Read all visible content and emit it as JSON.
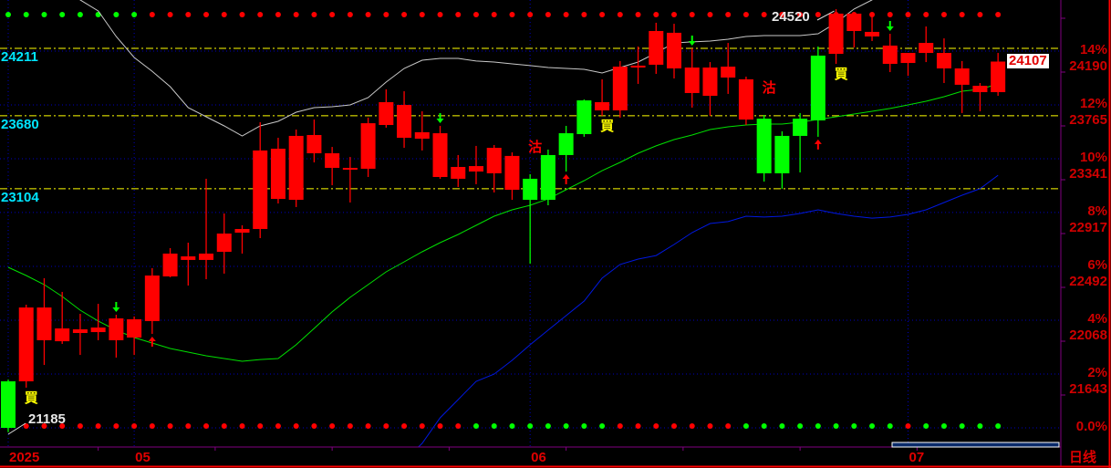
{
  "chart_data": {
    "type": "candlestick",
    "period_label": "日线",
    "x_tick_labels": [
      {
        "index": 0,
        "label": "2025"
      },
      {
        "index": 7,
        "label": "05"
      },
      {
        "index": 29,
        "label": "06"
      },
      {
        "index": 50,
        "label": "07"
      }
    ],
    "y_axis_right": [
      {
        "pct": "14%",
        "price": "24190",
        "value": 24190
      },
      {
        "pct": "12%",
        "price": "23765",
        "value": 23765
      },
      {
        "pct": "10%",
        "price": "23341",
        "value": 23341
      },
      {
        "pct": "8%",
        "price": "22917",
        "value": 22917
      },
      {
        "pct": "6%",
        "price": "22492",
        "value": 22492
      },
      {
        "pct": "4%",
        "price": "22068",
        "value": 22068
      },
      {
        "pct": "2%",
        "price": "21643",
        "value": 21643
      },
      {
        "pct": "0.0%",
        "price": "",
        "value": 21219
      }
    ],
    "base_price": 21219,
    "last_price": "24107",
    "last_price_value": 24107,
    "levels": [
      {
        "label": "24211",
        "value": 24211
      },
      {
        "label": "23680",
        "value": 23680
      },
      {
        "label": "23104",
        "value": 23104
      }
    ],
    "high_label": {
      "text": "24520",
      "index": 46
    },
    "low_label": {
      "text": "21185",
      "index": 0
    },
    "candles": [
      [
        21586,
        21600,
        21185,
        21219
      ],
      [
        21586,
        22190,
        21536,
        22168
      ],
      [
        21910,
        22399,
        21715,
        22168
      ],
      [
        21902,
        22291,
        21881,
        22003
      ],
      [
        21967,
        22118,
        21794,
        21996
      ],
      [
        21974,
        22197,
        21910,
        22010
      ],
      [
        21910,
        22111,
        21773,
        22082
      ],
      [
        21931,
        22097,
        21794,
        22075
      ],
      [
        22061,
        22478,
        21960,
        22420
      ],
      [
        22413,
        22636,
        22406,
        22593
      ],
      [
        22543,
        22679,
        22341,
        22571
      ],
      [
        22543,
        23183,
        22391,
        22593
      ],
      [
        22607,
        22909,
        22435,
        22751
      ],
      [
        22758,
        22816,
        22593,
        22787
      ],
      [
        22787,
        23629,
        22715,
        23406
      ],
      [
        23024,
        23506,
        22988,
        23420
      ],
      [
        23017,
        23571,
        22960,
        23521
      ],
      [
        23384,
        23650,
        23312,
        23528
      ],
      [
        23269,
        23434,
        23132,
        23384
      ],
      [
        23262,
        23355,
        22996,
        23269
      ],
      [
        23262,
        23665,
        23197,
        23621
      ],
      [
        23607,
        23888,
        23586,
        23787
      ],
      [
        23506,
        23873,
        23427,
        23765
      ],
      [
        23499,
        23715,
        23406,
        23550
      ],
      [
        23197,
        23600,
        23183,
        23542
      ],
      [
        23183,
        23370,
        23118,
        23276
      ],
      [
        23240,
        23442,
        23140,
        23283
      ],
      [
        23226,
        23449,
        23075,
        23427
      ],
      [
        23096,
        23391,
        23017,
        23363
      ],
      [
        23183,
        23219,
        22514,
        23017
      ],
      [
        23370,
        23413,
        22974,
        23017
      ],
      [
        23542,
        23600,
        23240,
        23370
      ],
      [
        23801,
        23808,
        23514,
        23535
      ],
      [
        23722,
        23967,
        23679,
        23787
      ],
      [
        23722,
        24111,
        23665,
        24067
      ],
      [
        24060,
        24226,
        23931,
        24075
      ],
      [
        24082,
        24413,
        24010,
        24348
      ],
      [
        24053,
        24405,
        23974,
        24334
      ],
      [
        23859,
        24211,
        23744,
        24060
      ],
      [
        23837,
        24103,
        23679,
        24060
      ],
      [
        23981,
        24254,
        23852,
        24067
      ],
      [
        23650,
        23988,
        23607,
        23967
      ],
      [
        23657,
        23686,
        23161,
        23226
      ],
      [
        23521,
        23557,
        23104,
        23226
      ],
      [
        23657,
        23701,
        23233,
        23521
      ],
      [
        24154,
        24226,
        23514,
        23643
      ],
      [
        24168,
        24520,
        24089,
        24485
      ],
      [
        24348,
        24499,
        24218,
        24485
      ],
      [
        24305,
        24485,
        24269,
        24341
      ],
      [
        24089,
        24326,
        24024,
        24233
      ],
      [
        24096,
        24175,
        23995,
        24175
      ],
      [
        24175,
        24384,
        24103,
        24254
      ],
      [
        24053,
        24290,
        23938,
        24175
      ],
      [
        23924,
        24111,
        23701,
        24053
      ],
      [
        23866,
        23938,
        23715,
        23916
      ],
      [
        23866,
        24175,
        23837,
        24107
      ]
    ],
    "lines": [
      {
        "color": "#c8c8c8",
        "values": [
          25024,
          24916,
          24808,
          24700,
          24593,
          24506,
          24305,
          24139,
          24031,
          23909,
          23744,
          23672,
          23600,
          23521,
          23600,
          23636,
          23708,
          23744,
          23751,
          23765,
          23823,
          23945,
          24053,
          24118,
          24132,
          24132,
          24111,
          24103,
          24089,
          24075,
          24060,
          24053,
          24046,
          24017,
          24060,
          24103,
          24175,
          24254,
          24262,
          24269,
          24283,
          24305,
          24312,
          24312,
          24312,
          24326,
          24413,
          24521,
          24593,
          24700,
          24780,
          24850,
          24900,
          24950,
          25000,
          25040
        ]
      },
      {
        "color": "#00e000",
        "values": [
          22485,
          22420,
          22348,
          22255,
          22147,
          22061,
          21989,
          21931,
          21888,
          21845,
          21816,
          21787,
          21766,
          21744,
          21758,
          21766,
          21874,
          22003,
          22133,
          22248,
          22348,
          22449,
          22528,
          22607,
          22679,
          22744,
          22816,
          22888,
          22938,
          22974,
          23024,
          23096,
          23168,
          23247,
          23312,
          23384,
          23442,
          23492,
          23528,
          23571,
          23593,
          23607,
          23614,
          23614,
          23629,
          23650,
          23672,
          23693,
          23715,
          23737,
          23765,
          23794,
          23830,
          23873,
          23888,
          23931
        ]
      },
      {
        "color": "#0018e0",
        "values": [
          null,
          null,
          null,
          null,
          null,
          null,
          null,
          null,
          null,
          null,
          null,
          null,
          null,
          null,
          null,
          null,
          null,
          null,
          null,
          null,
          null,
          null,
          20960,
          21097,
          21298,
          21442,
          21586,
          21643,
          21751,
          21874,
          21989,
          22104,
          22219,
          22399,
          22507,
          22550,
          22578,
          22665,
          22758,
          22830,
          22845,
          22888,
          22881,
          22888,
          22909,
          22938,
          22909,
          22888,
          22873,
          22881,
          22902,
          22938,
          22996,
          23053,
          23104,
          23211
        ]
      }
    ],
    "top_dots": {
      "green_until": 7
    },
    "bottom_dots": [
      "none",
      "r",
      "r",
      "r",
      "r",
      "r",
      "r",
      "r",
      "r",
      "r",
      "r",
      "r",
      "r",
      "r",
      "r",
      "r",
      "r",
      "r",
      "r",
      "r",
      "r",
      "r",
      "r",
      "r",
      "r",
      "r",
      "g",
      "g",
      "g",
      "g",
      "g",
      "g",
      "g",
      "g",
      "r",
      "r",
      "r",
      "r",
      "r",
      "r",
      "r",
      "g",
      "g",
      "g",
      "g",
      "g",
      "g",
      "g",
      "g",
      "g",
      "r",
      "g",
      "g",
      "g",
      "g",
      "g"
    ],
    "signals": [
      {
        "index": 1,
        "text": "買",
        "color": "#ffff00",
        "place": "below"
      },
      {
        "index": 29,
        "text": "沽",
        "color": "#ff0000",
        "place": "above"
      },
      {
        "index": 33,
        "text": "買",
        "color": "#ffff00",
        "place": "below"
      },
      {
        "index": 42,
        "text": "沽",
        "color": "#ff0000",
        "place": "above"
      },
      {
        "index": 46,
        "text": "買",
        "color": "#ffff00",
        "place": "below"
      }
    ],
    "arrows": [
      {
        "index": 6,
        "dir": "down",
        "color": "#00ff00"
      },
      {
        "index": 24,
        "dir": "down",
        "color": "#00ff00"
      },
      {
        "index": 38,
        "dir": "down",
        "color": "#00ff00"
      },
      {
        "index": 49,
        "dir": "down",
        "color": "#00ff00"
      },
      {
        "index": 8,
        "dir": "up",
        "color": "#ff0000"
      },
      {
        "index": 31,
        "dir": "up",
        "color": "#ff0000"
      },
      {
        "index": 45,
        "dir": "up",
        "color": "#ff0000"
      }
    ],
    "colors": {
      "up": "#ff0000",
      "down": "#00ff00",
      "level_line": "#ffff00",
      "grid": "#0000c0",
      "frame": "#800080"
    }
  }
}
